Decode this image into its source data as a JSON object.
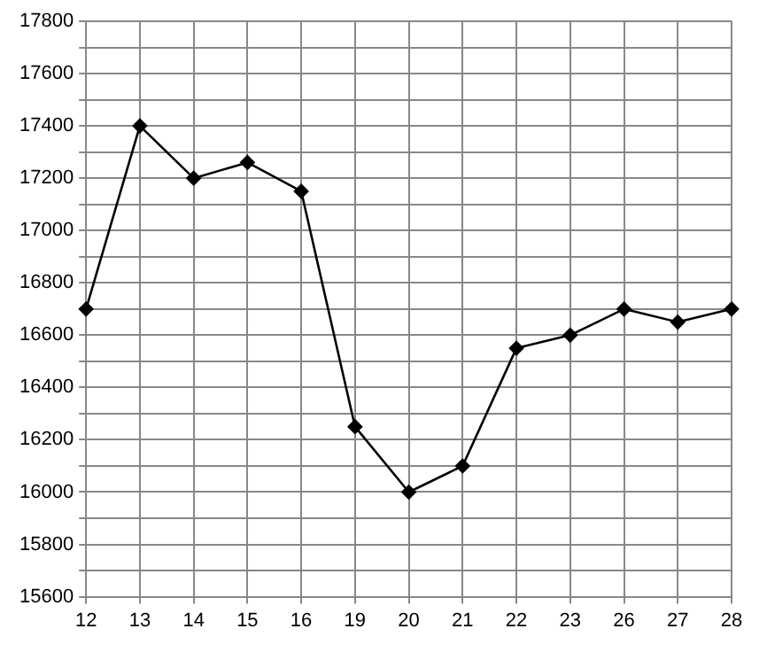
{
  "chart_data": {
    "type": "line",
    "categories": [
      "12",
      "13",
      "14",
      "15",
      "16",
      "19",
      "20",
      "21",
      "22",
      "23",
      "26",
      "27",
      "28"
    ],
    "series": [
      {
        "color": "#000000",
        "values": [
          16700,
          17400,
          17200,
          17260,
          17150,
          16250,
          16000,
          16100,
          16550,
          16600,
          16700,
          16650,
          16700
        ]
      }
    ],
    "ylim": [
      15600,
      17800
    ],
    "yticks": [
      15600,
      {
        "value": 15700,
        "label": null
      },
      15800,
      {
        "value": 15900,
        "label": null
      },
      16000,
      {
        "value": 16100,
        "label": null
      },
      16200,
      {
        "value": 16300,
        "label": null
      },
      16400,
      {
        "value": 16500,
        "label": null
      },
      16600,
      {
        "value": 16700,
        "label": null
      },
      16800,
      {
        "value": 16900,
        "label": null
      },
      17000,
      {
        "value": 17100,
        "label": null
      },
      17200,
      {
        "value": 17300,
        "label": null
      },
      17400,
      {
        "value": 17500,
        "label": null
      },
      17600,
      {
        "value": 17700,
        "label": null
      },
      17800
    ],
    "grid": true,
    "legend": false,
    "marker": "diamond",
    "line_style": "solid"
  }
}
